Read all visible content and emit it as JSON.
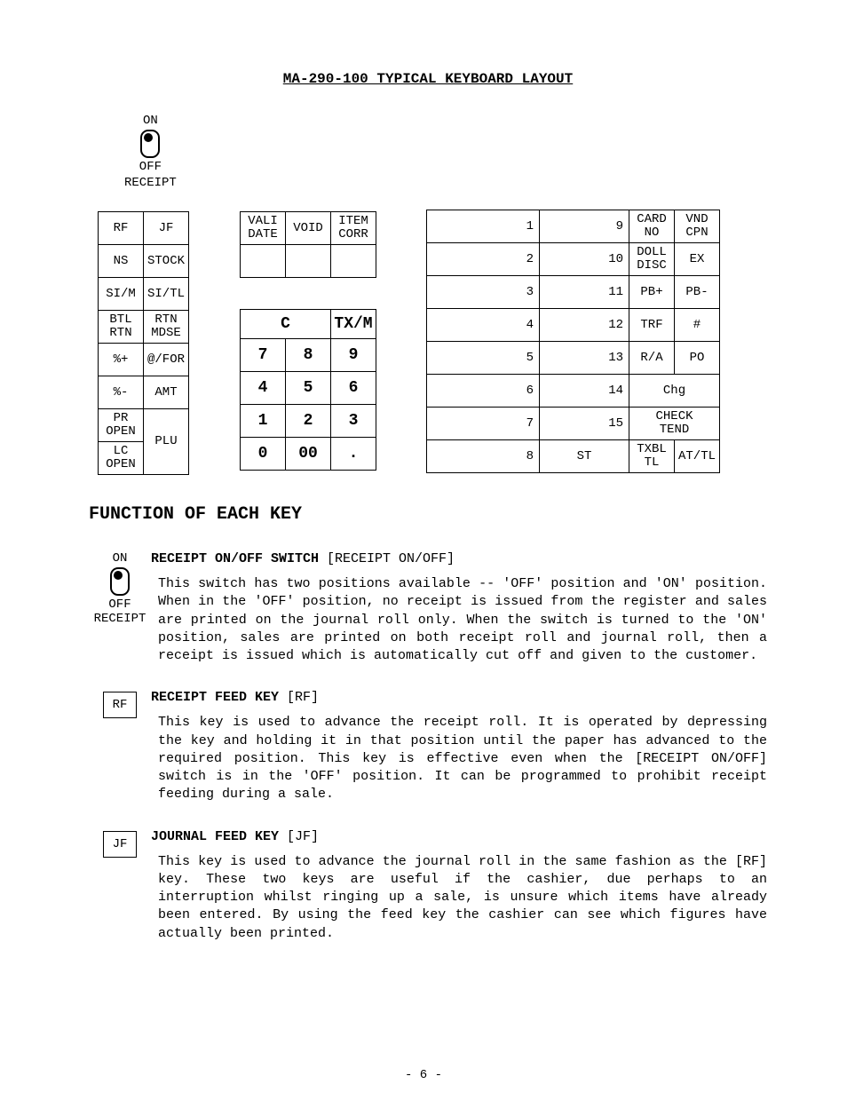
{
  "title": "MA-290-100 TYPICAL KEYBOARD LAYOUT",
  "switch": {
    "on": "ON",
    "off": "OFF",
    "label": "RECEIPT"
  },
  "left_block": {
    "rows": [
      [
        "RF",
        "JF"
      ],
      [
        "NS",
        "STOCK"
      ],
      [
        "SI/M",
        "SI/TL"
      ],
      [
        "BTL\nRTN",
        "RTN\nMDSE"
      ],
      [
        "%+",
        "@/FOR"
      ],
      [
        "%-",
        "AMT"
      ],
      [
        "PR\nOPEN",
        ""
      ],
      [
        "LC\nOPEN",
        "PLU"
      ]
    ],
    "plu_rowspan_start": 6
  },
  "mid_top": {
    "rows": [
      [
        "VALI\nDATE",
        "VOID",
        "ITEM\nCORR"
      ],
      [
        "",
        "",
        ""
      ]
    ]
  },
  "numpad_head": {
    "c": "C",
    "tx": "TX/M"
  },
  "numpad_rows": [
    [
      "7",
      "8",
      "9"
    ],
    [
      "4",
      "5",
      "6"
    ],
    [
      "1",
      "2",
      "3"
    ],
    [
      "0",
      "00",
      "."
    ]
  ],
  "right_block": {
    "rows": [
      {
        "a": "1",
        "b": "9",
        "c": "CARD\nNO",
        "d": "VND\nCPN"
      },
      {
        "a": "2",
        "b": "10",
        "c": "DOLL\nDISC",
        "d": "EX"
      },
      {
        "a": "3",
        "b": "11",
        "c": "PB+",
        "d": "PB-"
      },
      {
        "a": "4",
        "b": "12",
        "c": "TRF",
        "d": "#"
      },
      {
        "a": "5",
        "b": "13",
        "c": "R/A",
        "d": "PO"
      },
      {
        "a": "6",
        "b": "14",
        "cd": "Chg"
      },
      {
        "a": "7",
        "b": "15",
        "cd": "CHECK\nTEND"
      },
      {
        "a": "8",
        "st": "ST",
        "tx": "TXBL\nTL",
        "cd": "AT/TL"
      }
    ]
  },
  "section_title": "FUNCTION OF EACH KEY",
  "func": [
    {
      "key_type": "switch",
      "head_bold": "RECEIPT ON/OFF SWITCH",
      "head_rest": " [RECEIPT ON/OFF]",
      "text": "This switch has two positions available -- 'OFF' position and 'ON' position.  When in the 'OFF' position, no receipt is issued from the register and sales are printed on the journal roll only.  When the switch is turned to the 'ON' position, sales are printed on both receipt roll and journal roll, then a receipt is issued which is automatically cut off and given to the customer."
    },
    {
      "key_type": "box",
      "key_label": "RF",
      "head_bold": "RECEIPT FEED KEY",
      "head_rest": " [RF]",
      "text": "This key is used to advance the receipt roll.  It is operated by depressing the key and holding it in that position until the paper has advanced to the required position.  This key is effective even when the [RECEIPT ON/OFF] switch is in the 'OFF' position.  It can be programmed to prohibit receipt feeding during a sale."
    },
    {
      "key_type": "box",
      "key_label": "JF",
      "head_bold": "JOURNAL FEED KEY",
      "head_rest": " [JF]",
      "text": "This key is used to advance the journal roll in the same fashion as the [RF] key.  These two keys are useful if the cashier, due perhaps to an interruption whilst ringing up a sale, is unsure which items have already been entered.  By using the feed key the cashier can see which figures have actually been printed."
    }
  ],
  "page_number": "- 6 -"
}
